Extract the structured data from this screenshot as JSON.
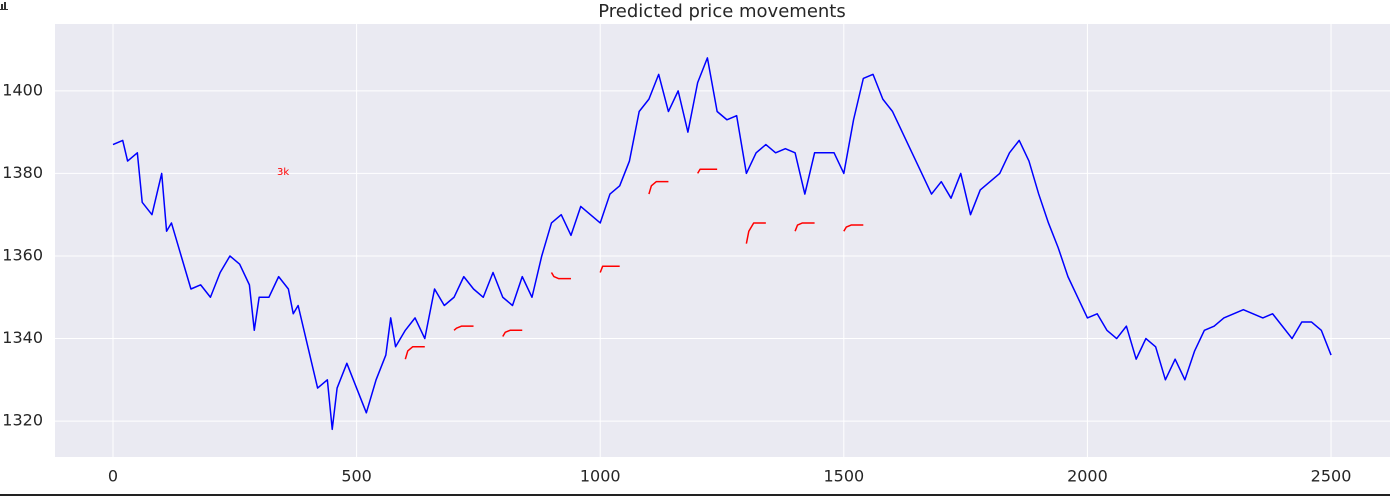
{
  "chart_data": {
    "type": "line",
    "title": "Predicted price movements",
    "annotation": "3k",
    "annotation_color": "#ff0000",
    "grid": true,
    "background": "#eaeaf2",
    "xlim": [
      -119,
      2621
    ],
    "ylim": [
      1311.3,
      1416.2
    ],
    "xticks": [
      0,
      500,
      1000,
      1500,
      2000,
      2500
    ],
    "yticks": [
      1320,
      1340,
      1360,
      1380,
      1400
    ],
    "series": [
      {
        "color": "#0000ff",
        "x": [
          0,
          20,
          30,
          50,
          60,
          80,
          90,
          100,
          110,
          120,
          140,
          160,
          180,
          200,
          220,
          240,
          260,
          280,
          290,
          300,
          320,
          340,
          360,
          370,
          380,
          400,
          420,
          440,
          450,
          460,
          480,
          500,
          520,
          540,
          560,
          570,
          580,
          600,
          620,
          640,
          660,
          680,
          700,
          720,
          740,
          760,
          780,
          800,
          820,
          840,
          860,
          880,
          900,
          920,
          940,
          960,
          980,
          1000,
          1020,
          1040,
          1060,
          1080,
          1100,
          1120,
          1140,
          1160,
          1180,
          1200,
          1220,
          1240,
          1260,
          1280,
          1300,
          1320,
          1340,
          1360,
          1380,
          1400,
          1420,
          1440,
          1460,
          1480,
          1500,
          1520,
          1540,
          1560,
          1580,
          1600,
          1620,
          1640,
          1660,
          1680,
          1700,
          1720,
          1740,
          1760,
          1780,
          1800,
          1820,
          1840,
          1860,
          1880,
          1900,
          1920,
          1940,
          1960,
          1980,
          2000,
          2020,
          2040,
          2060,
          2080,
          2100,
          2120,
          2140,
          2160,
          2180,
          2200,
          2220,
          2240,
          2260,
          2280,
          2300,
          2320,
          2340,
          2360,
          2380,
          2400,
          2420,
          2440,
          2460,
          2480,
          2500
        ],
        "values": [
          1387,
          1388,
          1383,
          1385,
          1373,
          1370,
          1375,
          1380,
          1366,
          1368,
          1360,
          1352,
          1353,
          1350,
          1356,
          1360,
          1358,
          1353,
          1342,
          1350,
          1350,
          1355,
          1352,
          1346,
          1348,
          1338,
          1328,
          1330,
          1318,
          1328,
          1334,
          1328,
          1322,
          1330,
          1336,
          1345,
          1338,
          1342,
          1345,
          1340,
          1352,
          1348,
          1350,
          1355,
          1352,
          1350,
          1356,
          1350,
          1348,
          1355,
          1350,
          1360,
          1368,
          1370,
          1365,
          1372,
          1370,
          1368,
          1375,
          1377,
          1383,
          1395,
          1398,
          1404,
          1395,
          1400,
          1390,
          1402,
          1408,
          1395,
          1393,
          1394,
          1380,
          1385,
          1387,
          1385,
          1386,
          1385,
          1375,
          1385,
          1385,
          1385,
          1380,
          1393,
          1403,
          1404,
          1398,
          1395,
          1390,
          1385,
          1380,
          1375,
          1378,
          1374,
          1380,
          1370,
          1376,
          1378,
          1380,
          1385,
          1388,
          1383,
          1375,
          1368,
          1362,
          1355,
          1350,
          1345,
          1346,
          1342,
          1340,
          1343,
          1335,
          1340,
          1338,
          1330,
          1335,
          1330,
          1337,
          1342,
          1343,
          1345,
          1346,
          1347,
          1346,
          1345,
          1346,
          1343,
          1340,
          1344,
          1344,
          1342,
          1336
        ]
      },
      {
        "color": "#ff0000",
        "x": [
          600,
          605,
          615,
          640
        ],
        "values": [
          1335,
          1337,
          1338,
          1338
        ]
      },
      {
        "color": "#ff0000",
        "x": [
          700,
          705,
          715,
          740
        ],
        "values": [
          1342,
          1342.5,
          1343,
          1343
        ]
      },
      {
        "color": "#ff0000",
        "x": [
          800,
          805,
          815,
          840
        ],
        "values": [
          1340.5,
          1341.5,
          1342,
          1342
        ]
      },
      {
        "color": "#ff0000",
        "x": [
          900,
          905,
          915,
          940
        ],
        "values": [
          1356,
          1355,
          1354.5,
          1354.5
        ]
      },
      {
        "color": "#ff0000",
        "x": [
          1000,
          1005,
          1015,
          1040
        ],
        "values": [
          1356,
          1357.5,
          1357.5,
          1357.5
        ]
      },
      {
        "color": "#ff0000",
        "x": [
          1100,
          1105,
          1115,
          1140
        ],
        "values": [
          1375,
          1377,
          1378,
          1378
        ]
      },
      {
        "color": "#ff0000",
        "x": [
          1200,
          1205,
          1215,
          1240
        ],
        "values": [
          1380,
          1381,
          1381,
          1381
        ]
      },
      {
        "color": "#ff0000",
        "x": [
          1300,
          1305,
          1315,
          1340
        ],
        "values": [
          1363,
          1366,
          1368,
          1368
        ]
      },
      {
        "color": "#ff0000",
        "x": [
          1400,
          1405,
          1415,
          1440
        ],
        "values": [
          1366,
          1367.5,
          1368,
          1368
        ]
      },
      {
        "color": "#ff0000",
        "x": [
          1500,
          1505,
          1515,
          1540
        ],
        "values": [
          1366,
          1367,
          1367.5,
          1367.5
        ]
      }
    ]
  }
}
